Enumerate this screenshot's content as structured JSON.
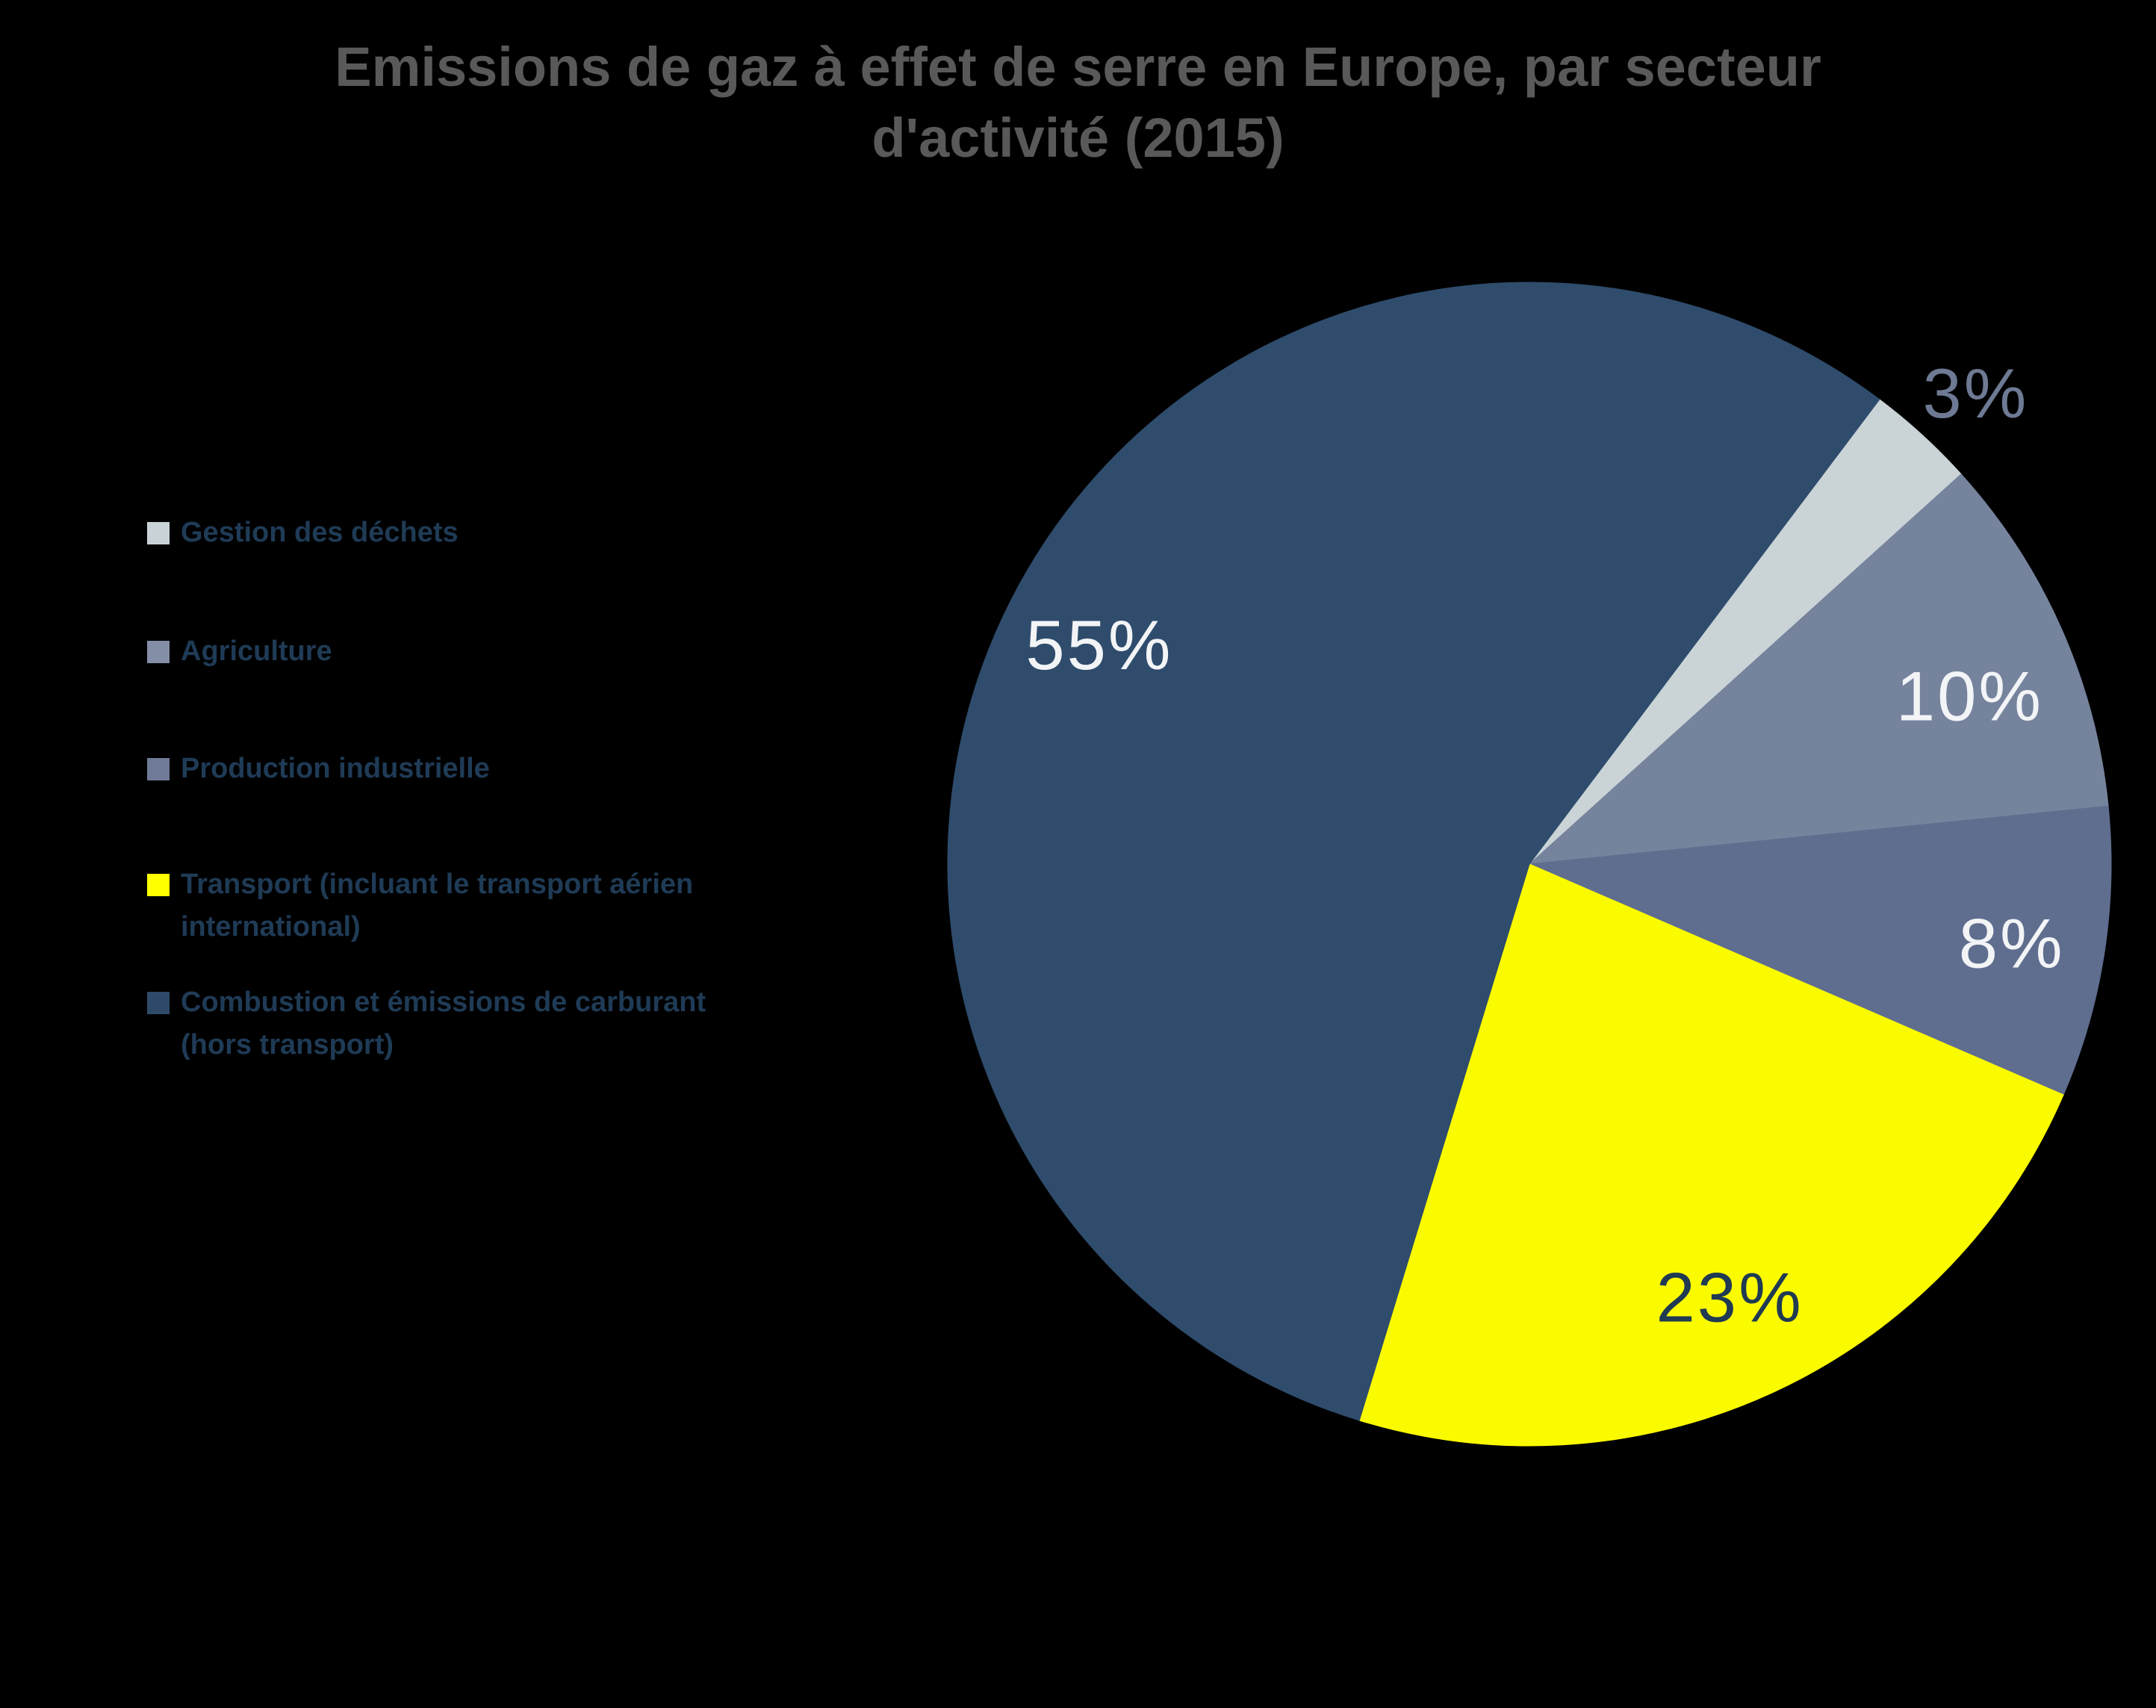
{
  "title": {
    "text": "Emissions de gaz à effet de serre en Europe, par secteur\nd'activité (2015)"
  },
  "colors": {
    "background": "#000000",
    "title_text": "#595959",
    "legend_text": "#1F3B56",
    "inside_label_text": "#F2F4F6",
    "outside_label_text": "#6E7A94",
    "transport_label_text": "#1F3A52"
  },
  "legend": {
    "items": [
      {
        "label": "Gestion des déchets",
        "color": "#C9D3D7"
      },
      {
        "label": "Agriculture",
        "color": "#848EA6"
      },
      {
        "label": "Production industrielle",
        "color": "#6F7A97"
      },
      {
        "label": "Transport (incluant le transport aérien\ninternational)",
        "color": "#FFFF00"
      },
      {
        "label": "Combustion et émissions de carburant\n(hors transport)",
        "color": "#2E4A68"
      }
    ]
  },
  "chart_data": {
    "type": "pie",
    "title": "Emissions de gaz à effet de serre en Europe, par secteur d'activité (2015)",
    "unit": "%",
    "legend_position": "left",
    "direction": "clockwise",
    "slices": [
      {
        "label": "Gestion des déchets",
        "value": 3,
        "display": "3%",
        "color": "#CAD3D6",
        "label_color": "#6E7A94",
        "label_position": "outside"
      },
      {
        "label": "Agriculture",
        "value": 10,
        "display": "10%",
        "color": "#76839D",
        "label_color": "#F2F4F6",
        "label_position": "inside"
      },
      {
        "label": "Production industrielle",
        "value": 8,
        "display": "8%",
        "color": "#5F6E8E",
        "label_color": "#F2F4F6",
        "label_position": "inside"
      },
      {
        "label": "Transport (incluant le transport aérien international)",
        "value": 23,
        "display": "23%",
        "color": "#FBFB00",
        "label_color": "#1F3A52",
        "label_position": "inside"
      },
      {
        "label": "Combustion et émissions de carburant (hors transport)",
        "value": 55,
        "display": "55%",
        "color": "#2F4C6C",
        "label_color": "#F2F4F6",
        "label_position": "inside"
      }
    ]
  }
}
